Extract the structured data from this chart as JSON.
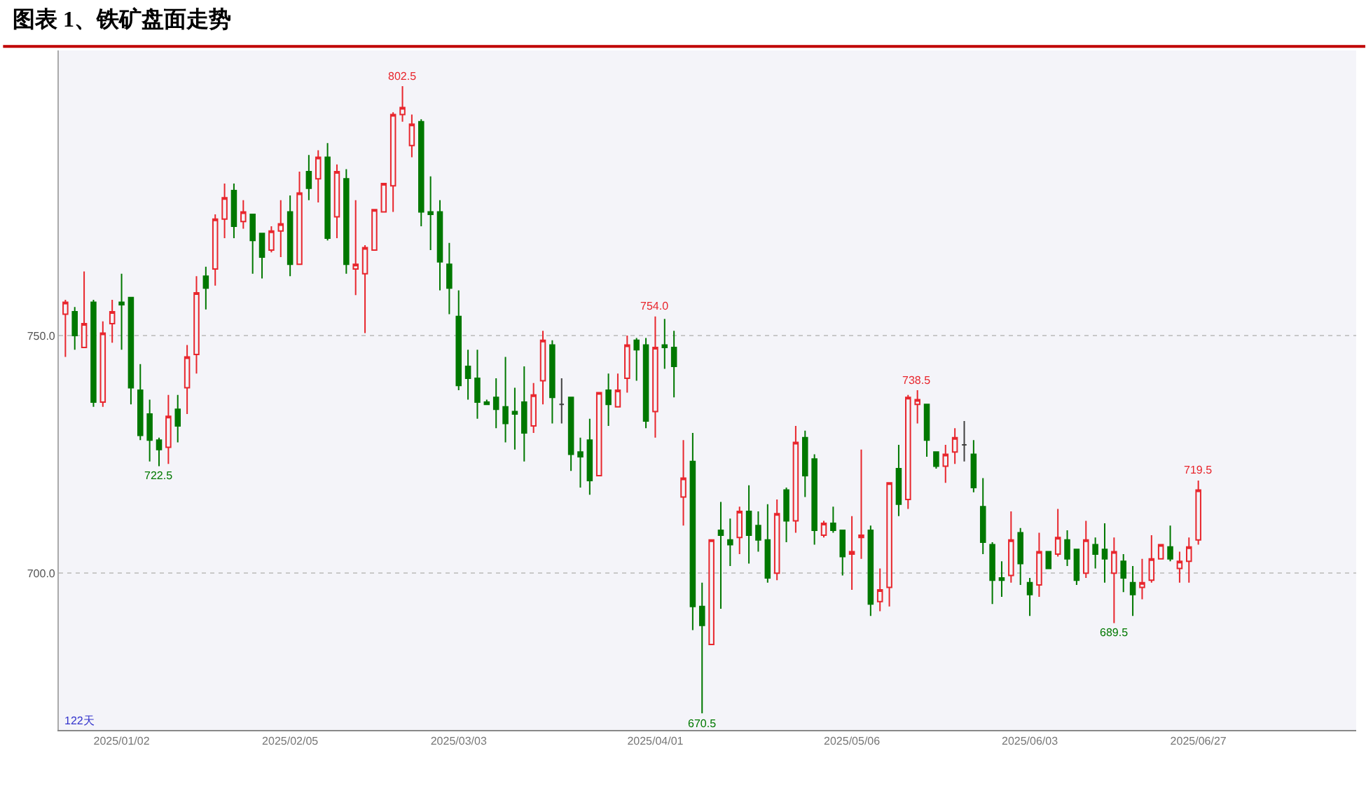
{
  "chart_data": {
    "type": "candlestick",
    "title": "图表 1、铁矿盘面走势",
    "categories": [
      null,
      null,
      null,
      null,
      null,
      null,
      "2025/01/02",
      null,
      null,
      null,
      null,
      null,
      null,
      null,
      null,
      null,
      null,
      null,
      null,
      null,
      null,
      null,
      null,
      null,
      "2025/02/05",
      null,
      null,
      null,
      null,
      null,
      null,
      null,
      null,
      null,
      null,
      null,
      null,
      null,
      null,
      null,
      null,
      null,
      "2025/03/03",
      null,
      null,
      null,
      null,
      null,
      null,
      null,
      null,
      null,
      null,
      null,
      null,
      null,
      null,
      null,
      null,
      null,
      null,
      null,
      null,
      "2025/04/01",
      null,
      null,
      null,
      null,
      null,
      null,
      null,
      null,
      null,
      null,
      null,
      null,
      null,
      null,
      null,
      null,
      null,
      null,
      null,
      null,
      "2025/05/06",
      null,
      null,
      null,
      null,
      null,
      null,
      null,
      null,
      null,
      null,
      null,
      null,
      null,
      null,
      null,
      null,
      null,
      null,
      "2025/06/03",
      null,
      null,
      null,
      null,
      null,
      null,
      null,
      null,
      null,
      null,
      null,
      null,
      null,
      null,
      null,
      null,
      null,
      "2025/06/27"
    ],
    "ohlc": [
      [
        754.5,
        757.5,
        745.5,
        757
      ],
      [
        755,
        756,
        747,
        750
      ],
      [
        747.5,
        763.5,
        747.5,
        752.5
      ],
      [
        757,
        757.5,
        735,
        736
      ],
      [
        736,
        753,
        735,
        750.5
      ],
      [
        752.5,
        757.5,
        748.5,
        755
      ],
      [
        757,
        763,
        747,
        756.5
      ],
      [
        758,
        758,
        735.5,
        739
      ],
      [
        738.5,
        744,
        728,
        729
      ],
      [
        733.5,
        736.5,
        723.5,
        728
      ],
      [
        728,
        728.5,
        722.5,
        726
      ],
      [
        726.5,
        737.5,
        723,
        733
      ],
      [
        734.5,
        737.5,
        727.5,
        731
      ],
      [
        739,
        748,
        733.5,
        745.5
      ],
      [
        746,
        762.5,
        742,
        759
      ],
      [
        762.5,
        764.5,
        755.5,
        760
      ],
      [
        764,
        775.5,
        760.5,
        774.5
      ],
      [
        774.5,
        782,
        770.5,
        779
      ],
      [
        780.5,
        782,
        770.5,
        773
      ],
      [
        774,
        778.5,
        772.5,
        776
      ],
      [
        775.5,
        775.5,
        763,
        770
      ],
      [
        771.5,
        771.5,
        762,
        766.5
      ],
      [
        768,
        773,
        767.5,
        772
      ],
      [
        772,
        778.5,
        766.5,
        773.5
      ],
      [
        776,
        779.5,
        762.5,
        765
      ],
      [
        765,
        784.5,
        765,
        780
      ],
      [
        784.5,
        788,
        778.5,
        781
      ],
      [
        783,
        789,
        778,
        787.5
      ],
      [
        787.5,
        790.5,
        770,
        770.5
      ],
      [
        775,
        786,
        770.5,
        784.5
      ],
      [
        783,
        785,
        763,
        765
      ],
      [
        764,
        778.5,
        758.5,
        765
      ],
      [
        763,
        769,
        750.5,
        768.5
      ],
      [
        768,
        776.5,
        768,
        776.5
      ],
      [
        776,
        782,
        776,
        782
      ],
      [
        781.5,
        797,
        776,
        796.5
      ],
      [
        796.5,
        802.5,
        795,
        798
      ],
      [
        790,
        796.5,
        787.5,
        794.5
      ],
      [
        795,
        795.5,
        773,
        776
      ],
      [
        776,
        783.5,
        768,
        775.5
      ],
      [
        776,
        778.5,
        759.5,
        765.5
      ],
      [
        765,
        769.5,
        754.5,
        760
      ],
      [
        754,
        759.5,
        738.5,
        739.5
      ],
      [
        743.5,
        747,
        736.5,
        741
      ],
      [
        741,
        747,
        732.5,
        736
      ],
      [
        736,
        736.5,
        735.5,
        735.5
      ],
      [
        737,
        741,
        730.5,
        734.5
      ],
      [
        735,
        745.5,
        727.5,
        731.5
      ],
      [
        734,
        739,
        726,
        733.5
      ],
      [
        736,
        743.5,
        723.5,
        729.5
      ],
      [
        731,
        740,
        729.5,
        737.5
      ],
      [
        740.5,
        751,
        735.5,
        749
      ],
      [
        748,
        749,
        731.5,
        737
      ],
      [
        735.5,
        741,
        731.5,
        735.5
      ],
      [
        737,
        737,
        721.5,
        725
      ],
      [
        725.5,
        728.5,
        718,
        724.5
      ],
      [
        728,
        732.5,
        716.5,
        719.5
      ],
      [
        720.5,
        738,
        720.5,
        738
      ],
      [
        738.5,
        742,
        731,
        735.5
      ],
      [
        735,
        742,
        735,
        738.5
      ],
      [
        741,
        750,
        738,
        748
      ],
      [
        749,
        749.5,
        740.5,
        747
      ],
      [
        748,
        749.5,
        730.5,
        732
      ],
      [
        734,
        754,
        728.5,
        747.5
      ],
      [
        748,
        753.5,
        743,
        747.5
      ],
      [
        747.5,
        751,
        737,
        743.5
      ],
      [
        716,
        728,
        710,
        720
      ],
      [
        723.5,
        729.5,
        688,
        693
      ],
      [
        693,
        698,
        670.5,
        689
      ],
      [
        685,
        707,
        685,
        707
      ],
      [
        709,
        715,
        692.5,
        708
      ],
      [
        707,
        711.5,
        701.5,
        706
      ],
      [
        707.5,
        714,
        704,
        713
      ],
      [
        713,
        718.5,
        702,
        708
      ],
      [
        710,
        713,
        704.5,
        707
      ],
      [
        707,
        714.5,
        698,
        699
      ],
      [
        700,
        715.5,
        698.5,
        712.5
      ],
      [
        717.5,
        718,
        706.5,
        711
      ],
      [
        711,
        731,
        708.5,
        727.5
      ],
      [
        728.5,
        730,
        716,
        720.5
      ],
      [
        724,
        725,
        706,
        709
      ],
      [
        708,
        711,
        707.5,
        710.5
      ],
      [
        710.5,
        714,
        708.5,
        709
      ],
      [
        709,
        709,
        699.5,
        703.5
      ],
      [
        704,
        712,
        696.5,
        704.5
      ],
      [
        707.5,
        726,
        703,
        708
      ],
      [
        709,
        710,
        691,
        693.5
      ],
      [
        694,
        701,
        692,
        696.5
      ],
      [
        697,
        719,
        693,
        719
      ],
      [
        722,
        727,
        712,
        714.5
      ],
      [
        715.5,
        737.5,
        713.5,
        737
      ],
      [
        735.5,
        738.5,
        731.5,
        736.5
      ],
      [
        735.5,
        735.5,
        724.5,
        728
      ],
      [
        725.5,
        725.5,
        722,
        722.5
      ],
      [
        722.5,
        727,
        719,
        725
      ],
      [
        725.5,
        730.5,
        723,
        728.5
      ],
      [
        727,
        732,
        723.5,
        727
      ],
      [
        725,
        728,
        717,
        718
      ],
      [
        714,
        720,
        704,
        706.5
      ],
      [
        706,
        706.5,
        693.5,
        698.5
      ],
      [
        699,
        702.5,
        695,
        698.5
      ],
      [
        699.5,
        713,
        698,
        707
      ],
      [
        708.5,
        709.5,
        697.5,
        702
      ],
      [
        698,
        699,
        691,
        695.5
      ],
      [
        697.5,
        708.5,
        695,
        704.5
      ],
      [
        704.5,
        704.5,
        701,
        701
      ],
      [
        704,
        713.5,
        703.5,
        707.5
      ],
      [
        707,
        709,
        701.5,
        703
      ],
      [
        705,
        705,
        697.5,
        698.5
      ],
      [
        700,
        711,
        699,
        707
      ],
      [
        706,
        707.5,
        701,
        704
      ],
      [
        705,
        710.5,
        698,
        703
      ],
      [
        700,
        707.5,
        689.5,
        704.5
      ],
      [
        702.5,
        704,
        696,
        699
      ],
      [
        698,
        701.5,
        691,
        695.5
      ],
      [
        697,
        703,
        694.5,
        698
      ],
      [
        698.5,
        708,
        698,
        703
      ],
      [
        703,
        706,
        703,
        706
      ],
      [
        705.5,
        710,
        702.5,
        703
      ],
      [
        701,
        704.5,
        698,
        702.5
      ],
      [
        702.5,
        707.5,
        698,
        705.5
      ],
      [
        707,
        719.5,
        706,
        717.5
      ]
    ],
    "colors": [
      "#e8262d",
      "#007800",
      "#e8262d",
      "#007800",
      "#e8262d",
      "#e8262d",
      "#007800",
      "#007800",
      "#007800",
      "#007800",
      "#007800",
      "#e8262d",
      "#007800",
      "#e8262d",
      "#e8262d",
      "#007800",
      "#e8262d",
      "#e8262d",
      "#007800",
      "#e8262d",
      "#007800",
      "#007800",
      "#e8262d",
      "#e8262d",
      "#007800",
      "#e8262d",
      "#007800",
      "#e8262d",
      "#007800",
      "#e8262d",
      "#007800",
      "#e8262d",
      "#e8262d",
      "#e8262d",
      "#e8262d",
      "#e8262d",
      "#e8262d",
      "#e8262d",
      "#007800",
      "#007800",
      "#007800",
      "#007800",
      "#007800",
      "#007800",
      "#007800",
      "#007800",
      "#007800",
      "#007800",
      "#007800",
      "#007800",
      "#e8262d",
      "#e8262d",
      "#007800",
      "#404040",
      "#007800",
      "#007800",
      "#007800",
      "#e8262d",
      "#007800",
      "#e8262d",
      "#e8262d",
      "#007800",
      "#007800",
      "#e8262d",
      "#007800",
      "#007800",
      "#e8262d",
      "#007800",
      "#007800",
      "#e8262d",
      "#007800",
      "#007800",
      "#e8262d",
      "#007800",
      "#007800",
      "#007800",
      "#e8262d",
      "#007800",
      "#e8262d",
      "#007800",
      "#007800",
      "#e8262d",
      "#007800",
      "#007800",
      "#e8262d",
      "#e8262d",
      "#007800",
      "#e8262d",
      "#e8262d",
      "#007800",
      "#e8262d",
      "#e8262d",
      "#007800",
      "#007800",
      "#e8262d",
      "#e8262d",
      "#404040",
      "#007800",
      "#007800",
      "#007800",
      "#007800",
      "#e8262d",
      "#007800",
      "#007800",
      "#e8262d",
      "#007800",
      "#e8262d",
      "#007800",
      "#007800",
      "#e8262d",
      "#007800",
      "#007800",
      "#e8262d",
      "#007800",
      "#007800",
      "#e8262d",
      "#e8262d",
      "#e8262d",
      "#007800",
      "#e8262d",
      "#e8262d",
      "#e8262d"
    ],
    "ylim": [
      667,
      810
    ],
    "yticks": [
      {
        "value": 700,
        "label": "700.0"
      },
      {
        "value": 750,
        "label": "750.0"
      }
    ],
    "grid": "y",
    "annotations": [
      {
        "text": "802.5",
        "y": 802.5
      },
      {
        "text": "722.5",
        "y": 722.5
      },
      {
        "text": "754.0",
        "y": 754.0
      },
      {
        "text": "670.5",
        "y": 670.5
      },
      {
        "text": "738.5",
        "y": 738.5
      },
      {
        "text": "689.5",
        "y": 689.5
      },
      {
        "text": "719.5",
        "y": 719.5
      },
      "122天"
    ]
  }
}
